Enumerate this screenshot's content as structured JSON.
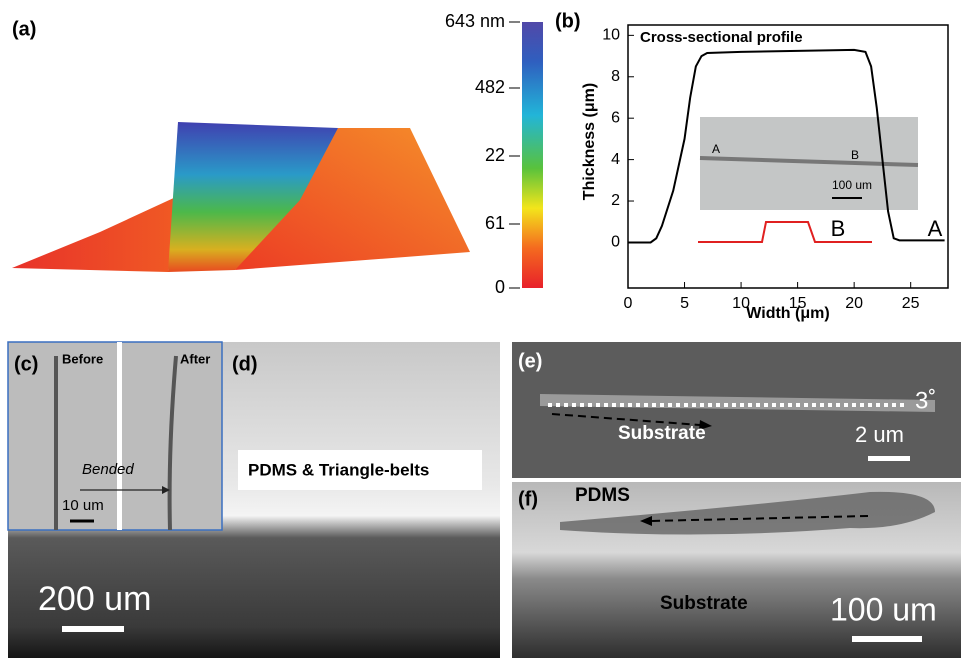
{
  "panels": {
    "a": {
      "label": "(a)",
      "colorbar_labels": [
        "643 nm",
        "482",
        "22",
        "61",
        "0"
      ]
    },
    "b": {
      "label": "(b)",
      "inset_labels": [
        "A",
        "B",
        "100 um"
      ],
      "end_labels": [
        "B",
        "A"
      ]
    },
    "c": {
      "label": "(c)",
      "before": "Before",
      "after": "After",
      "arrow_text": "Bended",
      "scale": "10 um"
    },
    "d": {
      "label": "(d)",
      "caption": "PDMS & Triangle-belts",
      "scale": "200 um"
    },
    "e": {
      "label": "(e)",
      "angle": "3˚",
      "substrate": "Substrate",
      "scale": "2 um"
    },
    "f": {
      "label": "(f)",
      "top": "PDMS",
      "substrate": "Substrate",
      "scale": "100 um"
    }
  },
  "chart_data": {
    "type": "line",
    "title": "Cross-sectional profile",
    "x_label": "Width (μm)",
    "y_label": "Thickness (μm)",
    "x": [
      0,
      2,
      2.5,
      3,
      4,
      5,
      5.5,
      6,
      6.5,
      7,
      10,
      15,
      20,
      21,
      21.5,
      22,
      22.5,
      23,
      23.5,
      24,
      26,
      28
    ],
    "values": [
      0,
      0,
      0.2,
      0.8,
      2.5,
      5,
      7,
      8.5,
      9,
      9.15,
      9.2,
      9.25,
      9.3,
      9.2,
      8.5,
      6.5,
      4,
      1.5,
      0.2,
      0.1,
      0.1,
      0.1
    ],
    "color": "#000000",
    "xlim": [
      0,
      28.3
    ],
    "ylim": [
      -2.2,
      10.5
    ],
    "xticks": [
      0,
      5,
      10,
      15,
      20,
      25
    ],
    "yticks": [
      0,
      2,
      4,
      6,
      8,
      10
    ]
  }
}
